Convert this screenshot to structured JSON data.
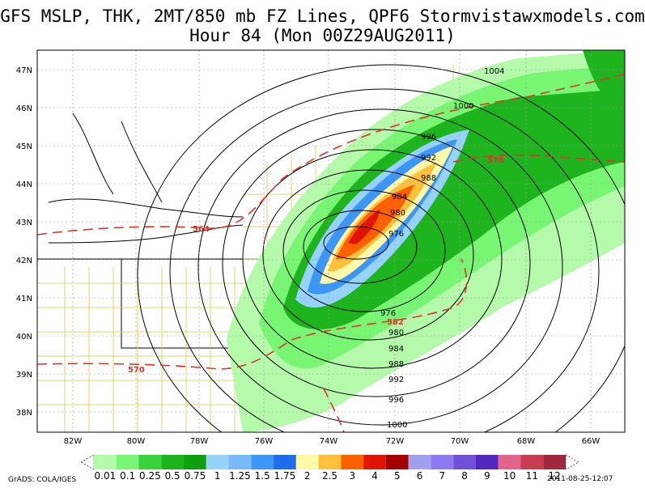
{
  "title_line1": "GFS MSLP, THK, 2MT/850 mb FZ Lines, QPF6 Stormvistawxmodels.com",
  "title_line2": "Hour 84 (Mon 00Z29AUG2011)",
  "lat_labels": [
    "47N",
    "46N",
    "45N",
    "44N",
    "43N",
    "42N",
    "41N",
    "40N",
    "39N",
    "38N"
  ],
  "lon_labels": [
    "82W",
    "80W",
    "78W",
    "76W",
    "74W",
    "72W",
    "70W",
    "68W",
    "66W"
  ],
  "isobar_labels": [
    "1004",
    "1000",
    "996",
    "992",
    "988",
    "984",
    "980",
    "976",
    "976",
    "980",
    "984",
    "988",
    "992",
    "996",
    "1000"
  ],
  "thickness_labels": [
    "564",
    "576",
    "582",
    "570"
  ],
  "legend": {
    "values": [
      "0.01",
      "0.1",
      "0.25",
      "0.5",
      "0.75",
      "1",
      "1.25",
      "1.5",
      "1.75",
      "2",
      "2.5",
      "3",
      "4",
      "5",
      "6",
      "7",
      "8",
      "9",
      "10",
      "11",
      "12"
    ],
    "colors": [
      "#b4faaa",
      "#78f573",
      "#37d23c",
      "#1eb41e",
      "#0fa00f",
      "#96d2fa",
      "#78b9fa",
      "#3c96f5",
      "#1e6eeb",
      "#fffaaa",
      "#ffc03c",
      "#ff6000",
      "#e11400",
      "#a50000",
      "#a0a0f0",
      "#8c78f0",
      "#7050d7",
      "#5028be",
      "#e1648c",
      "#c83c50",
      "#a0283c"
    ]
  },
  "credit": "GrADS: COLA/IGES",
  "timestamp": "2011-08-25-12:07",
  "colors": {
    "thickness": "#e0342a",
    "state_lines": "#d8c850",
    "border": "#000000"
  }
}
